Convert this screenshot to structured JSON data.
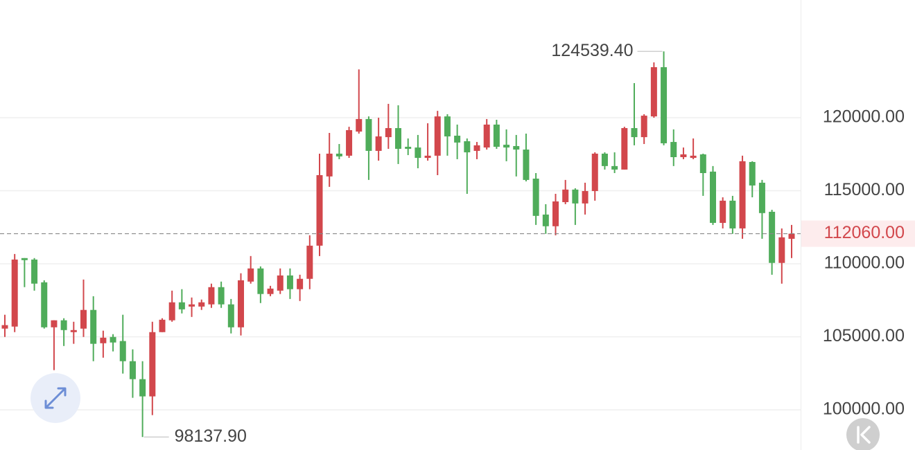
{
  "chart_data": {
    "type": "candlestick",
    "up_color": "#d2474c",
    "down_color": "#4fac5a",
    "ylim": [
      97250,
      128060
    ],
    "yticks": [
      {
        "value": 100000,
        "label": "100000.00"
      },
      {
        "value": 105000,
        "label": "105000.00"
      },
      {
        "value": 110000,
        "label": "110000.00"
      },
      {
        "value": 115000,
        "label": "115000.00"
      },
      {
        "value": 120000,
        "label": "120000.00"
      }
    ],
    "grid": true,
    "current_price": {
      "value": 112060,
      "label": "112060.00"
    },
    "annotations": [
      {
        "value": 124539.4,
        "label": "124539.40"
      },
      {
        "value": 98137.9,
        "label": "98137.90"
      }
    ],
    "open": [
      105560,
      105700,
      110390,
      110290,
      108730,
      105650,
      106130,
      105320,
      105560,
      106840,
      104560,
      104990,
      104710,
      103330,
      102100,
      100920,
      105320,
      106130,
      107360,
      107070,
      107070,
      107220,
      108400,
      107220,
      105650,
      108780,
      109680,
      107930,
      108160,
      109200,
      108260,
      108970,
      111240,
      115980,
      117540,
      117400,
      119050,
      119910,
      117730,
      118670,
      119290,
      118010,
      117960,
      117250,
      117400,
      120090,
      118770,
      118390,
      117730,
      117960,
      119530,
      118150,
      118060,
      117820,
      115830,
      113370,
      112570,
      114220,
      115080,
      114130,
      114980,
      117540,
      116690,
      116450,
      119290,
      118670,
      120090,
      123460,
      118340,
      117300,
      117250,
      117490,
      116310,
      112800,
      114320,
      112420,
      116970,
      115550,
      113560,
      110060,
      111710
    ],
    "high": [
      106510,
      110670,
      110390,
      110390,
      108870,
      106130,
      106270,
      106030,
      108920,
      107780,
      105420,
      105180,
      106510,
      104140,
      103330,
      106030,
      106270,
      108160,
      108260,
      107690,
      107550,
      108640,
      108780,
      107590,
      109350,
      110530,
      109820,
      108490,
      109680,
      109680,
      109250,
      111950,
      117540,
      118960,
      118200,
      119380,
      123310,
      120090,
      120000,
      120950,
      120850,
      118580,
      118820,
      119620,
      120470,
      120240,
      119530,
      118580,
      118340,
      119910,
      119860,
      119200,
      118820,
      118910,
      116210,
      114080,
      114790,
      115740,
      115170,
      115550,
      117630,
      117630,
      117630,
      119380,
      122370,
      120240,
      123790,
      124539.4,
      119200,
      117960,
      118580,
      117540,
      116690,
      114550,
      114650,
      117400,
      117020,
      115740,
      113700,
      112420,
      112660
    ],
    "low": [
      104990,
      105320,
      108400,
      108160,
      105560,
      102720,
      104370,
      104520,
      104990,
      103330,
      103570,
      104000,
      102480,
      100820,
      98137.9,
      99640,
      105320,
      106030,
      106600,
      106360,
      106840,
      106980,
      106980,
      105230,
      105090,
      108640,
      107310,
      107780,
      107930,
      107590,
      107450,
      108260,
      110530,
      115270,
      117160,
      117250,
      118910,
      115740,
      117060,
      117870,
      116830,
      117440,
      116540,
      117060,
      116070,
      117400,
      117160,
      114790,
      117160,
      117820,
      117870,
      117020,
      115980,
      115640,
      112660,
      112050,
      111950,
      114080,
      112660,
      113370,
      114320,
      116450,
      116210,
      116450,
      118110,
      118200,
      120000,
      118110,
      116690,
      117160,
      117160,
      114650,
      112660,
      112420,
      112050,
      111710,
      114550,
      111710,
      109250,
      108640,
      110390
    ],
    "close": [
      105800,
      110290,
      110250,
      108640,
      105650,
      106130,
      105460,
      105460,
      106840,
      104520,
      104940,
      104610,
      103330,
      102100,
      100920,
      105320,
      106170,
      107360,
      106880,
      107220,
      107360,
      108400,
      107220,
      105650,
      108870,
      109680,
      107930,
      108300,
      109200,
      108260,
      108970,
      111240,
      116070,
      117540,
      117350,
      119150,
      119910,
      117730,
      118720,
      119290,
      117870,
      117870,
      117250,
      117400,
      120090,
      118720,
      118300,
      117630,
      118110,
      119530,
      118010,
      117960,
      117820,
      115740,
      113280,
      112570,
      114270,
      115080,
      114130,
      114980,
      117540,
      116690,
      116450,
      119290,
      118670,
      120140,
      123460,
      118250,
      117300,
      117490,
      117400,
      116210,
      112800,
      114320,
      112420,
      117020,
      115360,
      113470,
      110060,
      111810,
      112060
    ]
  }
}
